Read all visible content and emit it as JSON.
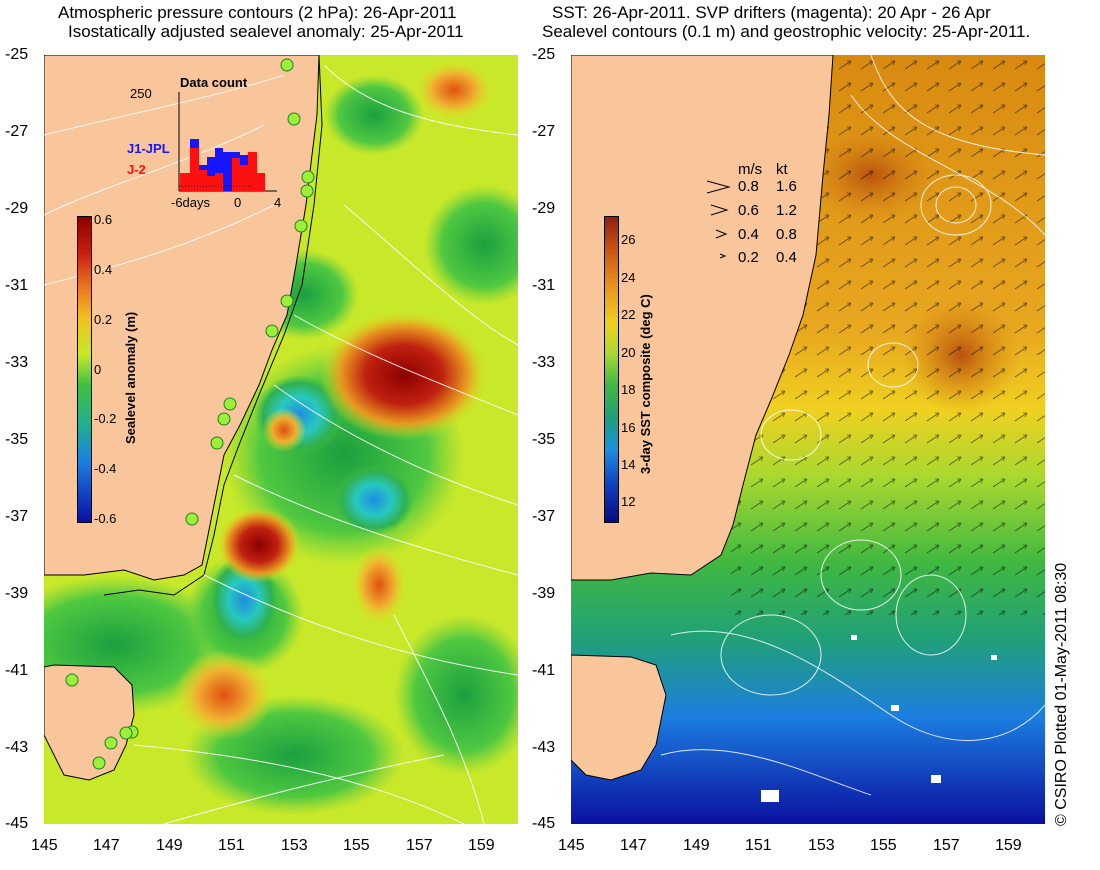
{
  "left_panel": {
    "title_line1": "Atmospheric pressure contours (2 hPa): 26-Apr-2011",
    "title_line2": "Isostatically adjusted sealevel anomaly: 25-Apr-2011",
    "colorbar": {
      "label": "Sealevel anomaly (m)",
      "ticks": [
        "0.6",
        "0.4",
        "0.2",
        "0",
        "-0.2",
        "-0.4",
        "-0.6"
      ]
    },
    "data_count": {
      "title": "Data count",
      "ymax_label": "250",
      "series1": "J1-JPL",
      "series2": "J-2",
      "series1_color": "#1515ff",
      "series2_color": "#ff1010",
      "x_labels": [
        "-6days",
        "0",
        "4"
      ]
    }
  },
  "right_panel": {
    "title_line1": "SST: 26-Apr-2011. SVP drifters (magenta): 20 Apr - 26 Apr",
    "title_line2": "Sealevel contours (0.1 m) and geostrophic velocity: 25-Apr-2011.",
    "colorbar": {
      "label": "3-day SST composite (deg C)",
      "ticks": [
        "26",
        "24",
        "22",
        "20",
        "18",
        "16",
        "14",
        "12"
      ]
    },
    "speed_legend": {
      "header_ms": "m/s",
      "header_kt": "kt",
      "rows": [
        {
          "ms": "0.8",
          "kt": "1.6"
        },
        {
          "ms": "0.6",
          "kt": "1.2"
        },
        {
          "ms": "0.4",
          "kt": "0.8"
        },
        {
          "ms": "0.2",
          "kt": "0.4"
        }
      ]
    }
  },
  "axes": {
    "lat_ticks": [
      "-25",
      "-27",
      "-29",
      "-31",
      "-33",
      "-35",
      "-37",
      "-39",
      "-41",
      "-43",
      "-45"
    ],
    "lon_ticks": [
      "145",
      "147",
      "149",
      "151",
      "153",
      "155",
      "157",
      "159"
    ]
  },
  "credit": "© CSIRO Plotted 01-May-2011 08:30",
  "colors": {
    "land": "#f9c59b",
    "coast_line": "#000000",
    "contour": "#ffffff",
    "tide_gauge": "#9cf03c"
  }
}
